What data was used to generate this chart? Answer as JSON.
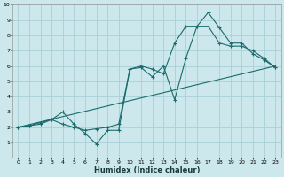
{
  "xlabel": "Humidex (Indice chaleur)",
  "bg_color": "#cce8ec",
  "grid_color": "#aad0d8",
  "line_color": "#1a6b6b",
  "xlim": [
    -0.5,
    23.5
  ],
  "ylim": [
    0,
    10
  ],
  "xticks": [
    0,
    1,
    2,
    3,
    4,
    5,
    6,
    7,
    8,
    9,
    10,
    11,
    12,
    13,
    14,
    15,
    16,
    17,
    18,
    19,
    20,
    21,
    22,
    23
  ],
  "yticks": [
    1,
    2,
    3,
    4,
    5,
    6,
    7,
    8,
    9,
    10
  ],
  "line1_x": [
    0,
    23
  ],
  "line1_y": [
    2.0,
    6.0
  ],
  "line2_x": [
    0,
    1,
    2,
    3,
    4,
    5,
    6,
    7,
    8,
    9,
    10,
    11,
    12,
    13,
    14,
    15,
    16,
    17,
    18,
    19,
    20,
    21,
    22,
    23
  ],
  "line2_y": [
    2.0,
    2.1,
    2.2,
    2.5,
    2.2,
    2.0,
    1.8,
    1.9,
    2.0,
    2.2,
    5.8,
    5.9,
    5.3,
    6.0,
    3.8,
    6.5,
    8.6,
    8.6,
    7.5,
    7.3,
    7.3,
    7.0,
    6.5,
    5.9
  ],
  "line3_x": [
    0,
    1,
    2,
    3,
    4,
    5,
    6,
    7,
    8,
    9,
    10,
    11,
    12,
    13,
    14,
    15,
    16,
    17,
    18,
    19,
    20,
    21,
    22,
    23
  ],
  "line3_y": [
    2.0,
    2.1,
    2.3,
    2.5,
    3.0,
    2.2,
    1.6,
    0.9,
    1.8,
    1.8,
    5.8,
    6.0,
    5.8,
    5.5,
    7.5,
    8.6,
    8.6,
    9.5,
    8.5,
    7.5,
    7.5,
    6.8,
    6.4,
    5.9
  ]
}
